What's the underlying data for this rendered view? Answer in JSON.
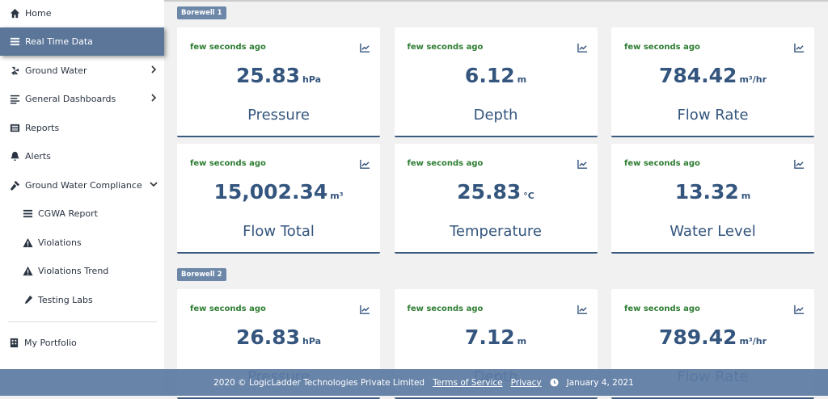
{
  "sidebar": {
    "items": [
      "Home",
      "Real Time Data",
      "Ground Water",
      "General Dashboards",
      "Reports",
      "Alerts",
      "Ground Water Compliance"
    ],
    "subitems": [
      "CGWA Report",
      "Violations",
      "Violations Trend",
      "Testing Labs"
    ],
    "bottom_items": [
      "My Portfolio"
    ]
  },
  "sections": [
    {
      "title": "Borewell 1",
      "cards": [
        {
          "updated": "few seconds ago",
          "value": "25.83",
          "unit": "hPa",
          "label": "Pressure"
        },
        {
          "updated": "few seconds ago",
          "value": "6.12",
          "unit": "m",
          "label": "Depth"
        },
        {
          "updated": "few seconds ago",
          "value": "784.42",
          "unit": "m³/hr",
          "label": "Flow Rate"
        },
        {
          "updated": "few seconds ago",
          "value": "15,002.34",
          "unit": "m³",
          "label": "Flow Total"
        },
        {
          "updated": "few seconds ago",
          "value": "25.83",
          "unit": "°C",
          "label": "Temperature"
        },
        {
          "updated": "few seconds ago",
          "value": "13.32",
          "unit": "m",
          "label": "Water Level"
        }
      ]
    },
    {
      "title": "Borewell 2",
      "cards": [
        {
          "updated": "few seconds ago",
          "value": "26.83",
          "unit": "hPa",
          "label": "Pressure"
        },
        {
          "updated": "few seconds ago",
          "value": "7.12",
          "unit": "m",
          "label": "Depth"
        },
        {
          "updated": "few seconds ago",
          "value": "789.42",
          "unit": "m³/hr",
          "label": "Flow Rate"
        }
      ]
    }
  ],
  "footer": {
    "copyright": "2020 © LogicLadder Technologies Private Limited",
    "links": [
      "Terms of Service",
      "Privacy"
    ],
    "date": "January 4, 2021"
  }
}
